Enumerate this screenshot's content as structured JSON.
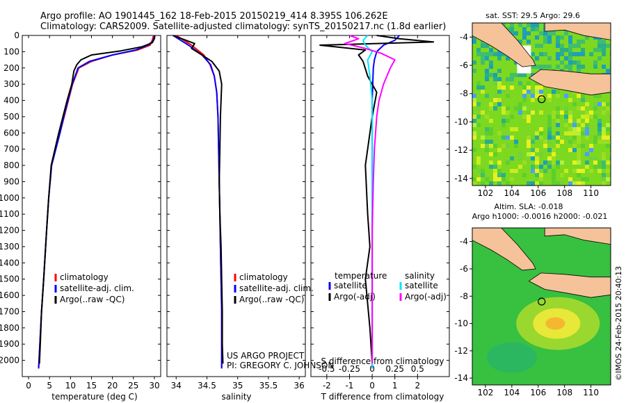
{
  "header": {
    "line1": "Argo profile: AO 1901445_162 18-Feb-2015 20150219_414 8.395S 106.262E",
    "line2": "Climatology: CARS2009. Satellite-adjusted climatology: synTS_20150217.nc (1.8d earlier)"
  },
  "credits": {
    "line1": "US ARGO PROJECT",
    "line2": "PI: GREGORY C. JOHNSON",
    "side": "©IMOS 24-Feb-2015 20:40:13"
  },
  "colors": {
    "climatology": "#ff0000",
    "satellite": "#0000ff",
    "argo": "#000000",
    "salinity_sat": "#00e5ff",
    "salinity_argo": "#ff00ff"
  },
  "chart_data": [
    {
      "id": "temperature",
      "type": "line",
      "xlabel": "temperature (deg C)",
      "ylim": [
        2100,
        0
      ],
      "xlim": [
        -1.5,
        31.5
      ],
      "xticks": [
        0,
        5,
        10,
        15,
        20,
        25,
        30
      ],
      "yticks": [
        0,
        100,
        200,
        300,
        400,
        500,
        600,
        700,
        800,
        900,
        1000,
        1100,
        1200,
        1300,
        1400,
        1500,
        1600,
        1700,
        1800,
        1900,
        2000
      ],
      "legend": [
        "climatology",
        "satellite-adj. clim.",
        "Argo(..raw -QC)"
      ],
      "series": [
        {
          "name": "climatology",
          "x": [
            29.8,
            29.5,
            29.0,
            26.0,
            20.0,
            15.0,
            12.0,
            10.5,
            9.5,
            8.5,
            7.5,
            6.5,
            5.5,
            4.8,
            4.3,
            3.6,
            3.1,
            2.7,
            2.4
          ],
          "y": [
            0,
            30,
            60,
            90,
            120,
            160,
            200,
            300,
            400,
            500,
            600,
            700,
            800,
            1000,
            1200,
            1500,
            1700,
            1900,
            2050
          ]
        },
        {
          "name": "satellite-adj. clim.",
          "x": [
            30.0,
            29.8,
            28.5,
            25.5,
            20.0,
            14.5,
            11.8,
            10.4,
            9.4,
            8.4,
            7.5,
            6.5,
            5.5,
            4.8,
            4.3,
            3.6,
            3.1,
            2.7,
            2.4
          ],
          "y": [
            0,
            30,
            60,
            90,
            120,
            160,
            200,
            300,
            400,
            500,
            600,
            700,
            800,
            1000,
            1200,
            1500,
            1700,
            1900,
            2050
          ]
        },
        {
          "name": "Argo(..raw -QC)",
          "x": [
            30.1,
            30.0,
            29.5,
            27.0,
            22.0,
            15.0,
            12.5,
            11.5,
            10.8,
            10.3,
            9.2,
            8.2,
            7.2,
            6.3,
            5.4,
            4.8,
            4.3,
            3.6,
            3.1,
            2.8,
            2.6
          ],
          "y": [
            0,
            20,
            45,
            70,
            95,
            120,
            150,
            180,
            220,
            300,
            400,
            500,
            600,
            700,
            800,
            1000,
            1200,
            1500,
            1700,
            1900,
            2020
          ]
        }
      ]
    },
    {
      "id": "salinity",
      "type": "line",
      "xlabel": "salinity",
      "ylim": [
        2100,
        0
      ],
      "xlim": [
        33.85,
        36.1
      ],
      "xticks": [
        34,
        34.5,
        35,
        35.5,
        36
      ],
      "legend": [
        "climatology",
        "satellite-adj. clim.",
        "Argo(..raw -QC)"
      ],
      "series": [
        {
          "name": "climatology",
          "x": [
            34.0,
            34.25,
            34.45,
            34.55,
            34.62,
            34.66,
            34.68,
            34.69,
            34.7,
            34.71,
            34.72,
            34.73,
            34.74,
            34.74,
            34.74
          ],
          "y": [
            0,
            60,
            120,
            180,
            250,
            350,
            500,
            700,
            900,
            1100,
            1300,
            1500,
            1700,
            1900,
            2050
          ]
        },
        {
          "name": "satellite-adj. clim.",
          "x": [
            33.95,
            34.2,
            34.42,
            34.56,
            34.62,
            34.66,
            34.68,
            34.69,
            34.7,
            34.71,
            34.72,
            34.73,
            34.74,
            34.74,
            34.74
          ],
          "y": [
            0,
            60,
            120,
            180,
            250,
            350,
            500,
            700,
            900,
            1100,
            1300,
            1500,
            1700,
            1900,
            2050
          ]
        },
        {
          "name": "Argo(..raw -QC)",
          "x": [
            33.95,
            34.3,
            34.25,
            34.42,
            34.58,
            34.7,
            34.74,
            34.73,
            34.72,
            34.71,
            34.7,
            34.71,
            34.73,
            34.74,
            34.75,
            34.75,
            34.76
          ],
          "y": [
            0,
            50,
            80,
            120,
            160,
            220,
            300,
            400,
            500,
            700,
            900,
            1100,
            1300,
            1500,
            1700,
            1900,
            2020
          ]
        }
      ]
    },
    {
      "id": "difference",
      "type": "line",
      "xlabel": "T difference from climatology",
      "xlabel_top": "S difference from climatology",
      "ylim": [
        2100,
        0
      ],
      "xlim": [
        -2.7,
        3.4
      ],
      "xticks": [
        -2,
        -1,
        0,
        1,
        2
      ],
      "s_xticks": [
        "-0.5",
        "-0.25",
        "0",
        "0.25",
        "0.5"
      ],
      "s_xtick_values": [
        -2,
        -1,
        0,
        1,
        2
      ],
      "legend_headers": [
        "temperature",
        "salinity"
      ],
      "legend": [
        "satellite",
        "Argo(-adj)",
        "satellite",
        "Argo(-adj)"
      ],
      "series": [
        {
          "name": "temperature satellite",
          "x": [
            1.2,
            1.0,
            0.5,
            0.2,
            0.1,
            0.05,
            0.0,
            0.0,
            0.0,
            0.0
          ],
          "y": [
            0,
            30,
            60,
            100,
            150,
            200,
            400,
            800,
            1400,
            2050
          ]
        },
        {
          "name": "temperature Argo(-adj)",
          "x": [
            0.2,
            1.2,
            2.7,
            -2.3,
            -0.3,
            -0.6,
            -0.4,
            -0.2,
            0.2,
            0.0,
            -0.3,
            -0.2,
            -0.1,
            -0.3,
            -0.1,
            0.0
          ],
          "y": [
            0,
            20,
            40,
            60,
            90,
            120,
            160,
            250,
            350,
            500,
            800,
            1100,
            1300,
            1500,
            1800,
            2020
          ]
        },
        {
          "name": "salinity satellite",
          "x": [
            -0.2,
            -0.4,
            -0.3,
            0.0,
            -0.2,
            -0.1,
            0.0,
            0.0,
            0.0,
            0.0
          ],
          "y": [
            0,
            30,
            60,
            100,
            150,
            250,
            400,
            800,
            1400,
            2050
          ]
        },
        {
          "name": "salinity Argo(-adj)",
          "x": [
            -1.0,
            -0.6,
            -1.2,
            -0.3,
            0.4,
            1.0,
            0.8,
            0.5,
            0.3,
            0.2,
            0.1,
            0.05,
            0.0,
            0.0
          ],
          "y": [
            0,
            20,
            50,
            80,
            110,
            150,
            200,
            300,
            400,
            500,
            700,
            900,
            1200,
            2020
          ]
        }
      ]
    },
    {
      "id": "sst-map",
      "type": "heatmap",
      "title": "sat. SST: 29.5  Argo: 29.6",
      "xlim": [
        101,
        111.5
      ],
      "ylim": [
        -14.5,
        -3
      ],
      "xticks": [
        102,
        104,
        106,
        108,
        110
      ],
      "yticks": [
        -4,
        -6,
        -8,
        -10,
        -12,
        -14
      ],
      "marker": {
        "lon": 106.262,
        "lat": -8.395
      }
    },
    {
      "id": "sla-map",
      "type": "heatmap",
      "title": "Altim. SLA: -0.018",
      "subtitle": "Argo h1000: -0.0016 h2000: -0.021",
      "xlim": [
        101,
        111.5
      ],
      "ylim": [
        -14.5,
        -3
      ],
      "xticks": [
        102,
        104,
        106,
        108,
        110
      ],
      "yticks": [
        -4,
        -6,
        -8,
        -10,
        -12,
        -14
      ],
      "marker": {
        "lon": 106.262,
        "lat": -8.395
      }
    }
  ]
}
